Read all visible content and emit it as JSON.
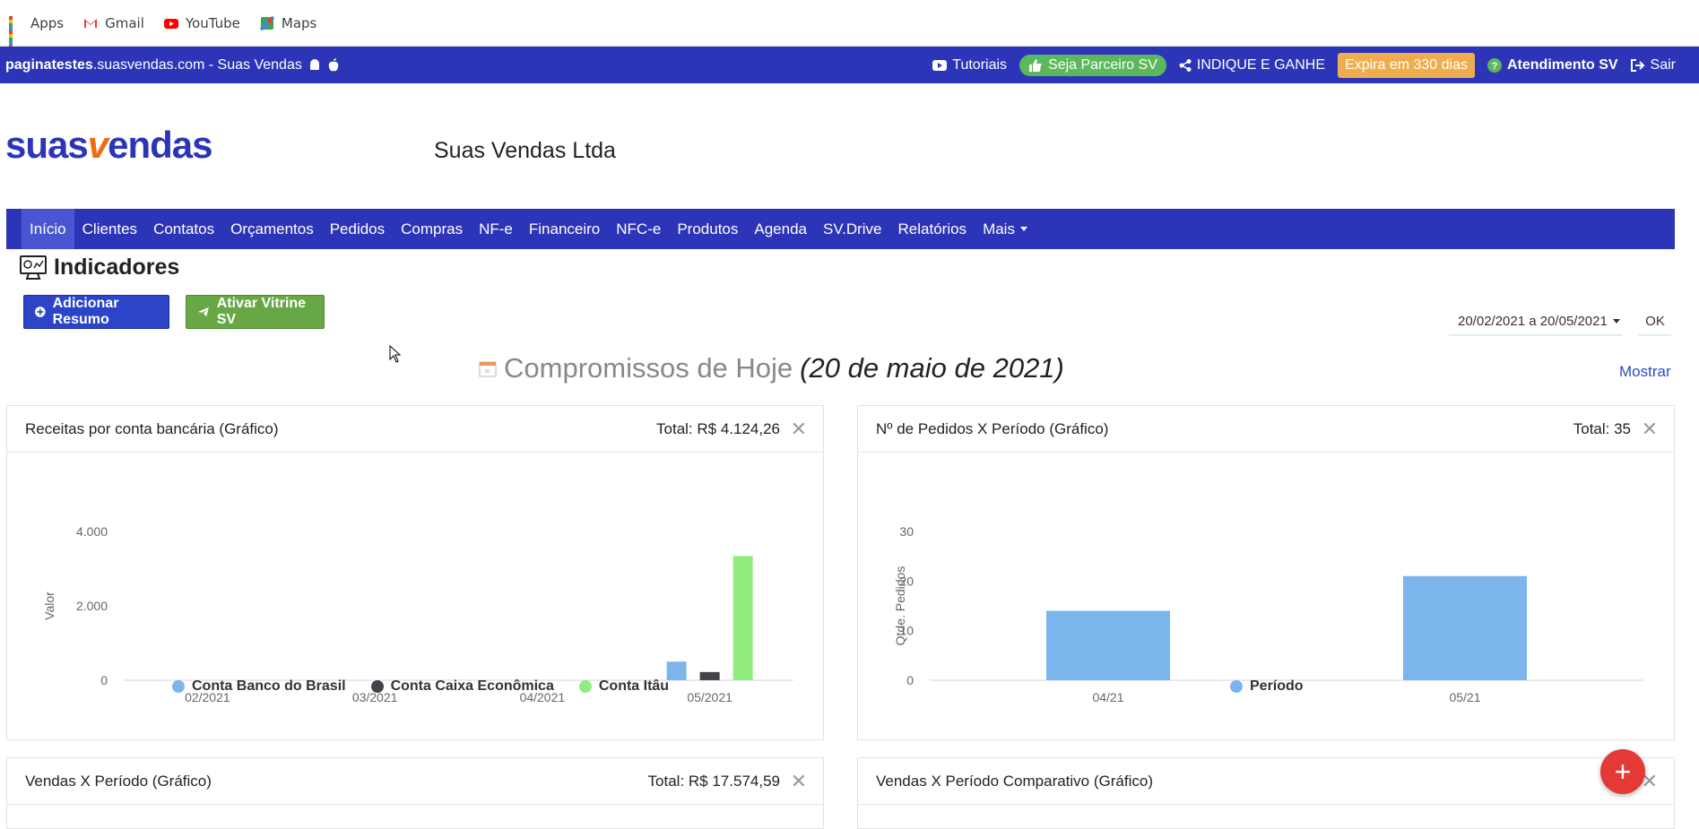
{
  "bookmarks": [
    {
      "label": "Apps",
      "icon": "apps-grid-icon"
    },
    {
      "label": "Gmail",
      "icon": "gmail-icon"
    },
    {
      "label": "YouTube",
      "icon": "youtube-icon"
    },
    {
      "label": "Maps",
      "icon": "maps-icon"
    }
  ],
  "topbar": {
    "site_bold": "paginatestes",
    "site_rest": ".suasvendas.com - Suas Vendas",
    "tutoriais": "Tutoriais",
    "parceiro": "Seja Parceiro SV",
    "indique": "INDIQUE E GANHE",
    "expira": "Expira em 330 dias",
    "atendimento": "Atendimento SV",
    "sair": "Sair"
  },
  "brand": {
    "part1": "suas",
    "part2": "v",
    "part3": "endas"
  },
  "company": "Suas Vendas Ltda",
  "nav": [
    "Início",
    "Clientes",
    "Contatos",
    "Orçamentos",
    "Pedidos",
    "Compras",
    "NF-e",
    "Financeiro",
    "NFC-e",
    "Produtos",
    "Agenda",
    "SV.Drive",
    "Relatórios",
    "Mais"
  ],
  "page": {
    "title": "Indicadores",
    "btn_resumo": "Adicionar Resumo",
    "btn_vitrine": "Ativar Vitrine SV",
    "daterange": "20/02/2021 a 20/05/2021",
    "ok": "OK",
    "agenda_title": "Compromissos de Hoje",
    "agenda_date": "(20 de maio de 2021)",
    "mostrar": "Mostrar"
  },
  "panels": {
    "receitas": {
      "title": "Receitas por conta bancária (Gráfico)",
      "total": "Total: R$ 4.124,26"
    },
    "pedidos": {
      "title": "Nº de Pedidos X Período (Gráfico)",
      "total": "Total: 35"
    },
    "vendas": {
      "title": "Vendas X Período (Gráfico)",
      "total": "Total: R$ 17.574,59"
    },
    "comparativo": {
      "title": "Vendas X Período Comparativo (Gráfico)"
    }
  },
  "colors": {
    "primary": "#2c35b7",
    "orange": "#f26a0f",
    "green": "#67a845",
    "bar_blue": "#7cb5ec",
    "bar_dark": "#434348",
    "bar_green": "#90ed7d",
    "fab": "#e53935"
  },
  "chart_data": [
    {
      "type": "bar",
      "ylabel": "Valor",
      "categories": [
        "02/2021",
        "03/2021",
        "04/2021",
        "05/2021"
      ],
      "yticks": [
        "0",
        "2.000",
        "4.000"
      ],
      "ylim": [
        0,
        4000
      ],
      "series": [
        {
          "name": "Conta Banco do Brasil",
          "color": "#7cb5ec",
          "values": [
            0,
            0,
            0,
            500
          ]
        },
        {
          "name": "Conta Caixa Econômica",
          "color": "#434348",
          "values": [
            0,
            0,
            0,
            220
          ]
        },
        {
          "name": "Conta Itâu",
          "color": "#90ed7d",
          "values": [
            0,
            0,
            0,
            3340
          ]
        }
      ],
      "legend": "bottom"
    },
    {
      "type": "bar",
      "ylabel": "Qtde. Pedidos",
      "categories": [
        "04/21",
        "05/21"
      ],
      "yticks": [
        "0",
        "10",
        "20",
        "30"
      ],
      "ylim": [
        0,
        30
      ],
      "series": [
        {
          "name": "Período",
          "color": "#7cb5ec",
          "values": [
            14,
            21
          ]
        }
      ],
      "legend": "bottom"
    }
  ]
}
